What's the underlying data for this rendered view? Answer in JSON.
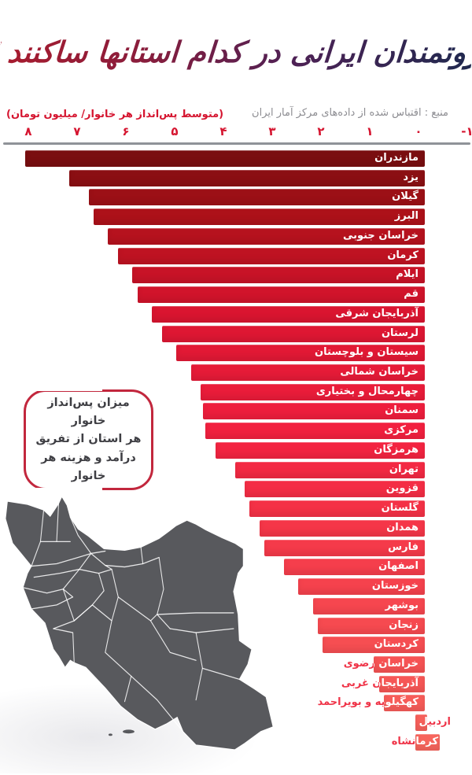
{
  "title": "ثروتمندان ایرانی در کدام استانها ساکنند ؟",
  "source": "منبع : اقتباس شده از داده‌های مرکز آمار ایران",
  "axis_label": "(متوسط پس‌انداز هر خانوار/ میلیون تومان)",
  "annotation": {
    "text": "میزان پس‌انداز خانوار\nهر استان از تفریق\nدرآمد و هزینه هر خانوار"
  },
  "map": {
    "description": "iran-provinces-map",
    "fill": "#58595d",
    "border": "#ffffff"
  },
  "colors": {
    "axis_text": "#d5142f",
    "axis_line": "#8f9398",
    "source_text": "#8d8d92",
    "overflow_label": "#ef3347",
    "bar_ramp": [
      "#7a0e10",
      "#ad1119",
      "#da1530",
      "#f2203f",
      "#f53a4a",
      "#f64e52",
      "#f7655d"
    ],
    "bar_ramp_stops": [
      0,
      3,
      8,
      14,
      20,
      25,
      30
    ],
    "title_gradient": [
      "#a81b2e",
      "#8a1d3c",
      "#4e2155",
      "#20294f"
    ]
  },
  "chart_data": {
    "type": "bar",
    "orientation": "horizontal-rtl",
    "title": "ثروتمندان ایرانی در کدام استانها ساکنند ؟",
    "xlabel": "(متوسط پس‌انداز هر خانوار/ میلیون تومان)",
    "xlim": [
      8,
      -1
    ],
    "grid": false,
    "x_tick_labels": [
      "۸",
      "۷",
      "۶",
      "۵",
      "۴",
      "۳",
      "۲",
      "۱",
      "۰",
      "-۱"
    ],
    "x_tick_values": [
      8,
      7,
      6,
      5,
      4,
      3,
      2,
      1,
      0,
      -1
    ],
    "categories": [
      "مازندران",
      "یزد",
      "گیلان",
      "البرز",
      "خراسان جنوبی",
      "کرمان",
      "ایلام",
      "قم",
      "آذربایجان شرقی",
      "لرستان",
      "سیستان و بلوچستان",
      "خراسان شمالی",
      "چهارمحال و بختیاری",
      "سمنان",
      "مرکزی",
      "هرمزگان",
      "تهران",
      "قزوین",
      "گلستان",
      "همدان",
      "فارس",
      "اصفهان",
      "خوزستان",
      "بوشهر",
      "زنجان",
      "کردستان",
      "خراسان رضوی",
      "آذربایجان غربی",
      "کهگیلویه و بویراحمد",
      "اردبیل",
      "کرمانشاه"
    ],
    "values": [
      8.0,
      7.1,
      6.7,
      6.6,
      6.3,
      6.1,
      5.8,
      5.7,
      5.4,
      5.2,
      4.9,
      4.6,
      4.4,
      4.35,
      4.3,
      4.1,
      3.7,
      3.5,
      3.4,
      3.2,
      3.1,
      2.7,
      2.4,
      2.1,
      2.0,
      1.9,
      0.85,
      0.75,
      0.65,
      -0.05,
      -0.3
    ],
    "label_right_overrides": {
      "29": 27,
      "30": 43
    }
  }
}
